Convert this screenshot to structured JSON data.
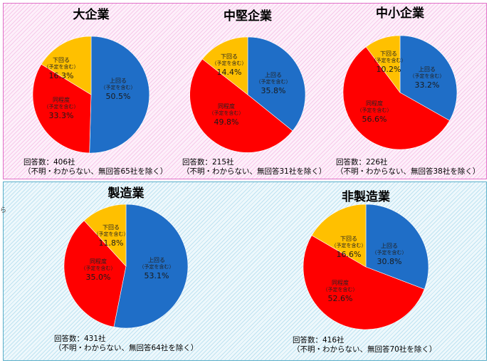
{
  "stray_mark": "ら",
  "chart_data": [
    {
      "type": "pie",
      "title": "大企業",
      "categories": [
        "上回る",
        "同程度",
        "下回る"
      ],
      "category_notes": [
        "（予定を含む）",
        "（予定を含む）",
        "（予定を含む）"
      ],
      "values": [
        50.5,
        33.3,
        16.3
      ],
      "value_labels": [
        "50.5%",
        "33.3%",
        "16.3%"
      ],
      "colors": [
        "#1f6ec7",
        "#ff0000",
        "#ffc000"
      ],
      "respondents": "回答数：406社",
      "note": "（不明・わからない、無回答65社を除く）"
    },
    {
      "type": "pie",
      "title": "中堅企業",
      "categories": [
        "上回る",
        "同程度",
        "下回る"
      ],
      "category_notes": [
        "（予定を含む）",
        "（予定を含む）",
        "（予定を含む）"
      ],
      "values": [
        35.8,
        49.8,
        14.4
      ],
      "value_labels": [
        "35.8%",
        "49.8%",
        "14.4%"
      ],
      "colors": [
        "#1f6ec7",
        "#ff0000",
        "#ffc000"
      ],
      "respondents": "回答数：215社",
      "note": "（不明・わからない、無回答31社を除く）"
    },
    {
      "type": "pie",
      "title": "中小企業",
      "categories": [
        "上回る",
        "同程度",
        "下回る"
      ],
      "category_notes": [
        "（予定を含む）",
        "（予定を含む）",
        "（予定を含む）"
      ],
      "values": [
        33.2,
        56.6,
        10.2
      ],
      "value_labels": [
        "33.2%",
        "56.6%",
        "10.2%"
      ],
      "colors": [
        "#1f6ec7",
        "#ff0000",
        "#ffc000"
      ],
      "respondents": "回答数：226社",
      "note": "（不明・わからない、無回答38社を除く）"
    },
    {
      "type": "pie",
      "title": "製造業",
      "categories": [
        "上回る",
        "同程度",
        "下回る"
      ],
      "category_notes": [
        "（予定を含む）",
        "（予定を含む）",
        "（予定を含む）"
      ],
      "values": [
        53.1,
        35.0,
        11.8
      ],
      "value_labels": [
        "53.1%",
        "35.0%",
        "11.8%"
      ],
      "colors": [
        "#1f6ec7",
        "#ff0000",
        "#ffc000"
      ],
      "respondents": "回答数：431社",
      "note": "（不明・わからない、無回答64社を除く）"
    },
    {
      "type": "pie",
      "title": "非製造業",
      "categories": [
        "上回る",
        "同程度",
        "下回る"
      ],
      "category_notes": [
        "（予定を含む）",
        "（予定を含む）",
        "（予定を含む）"
      ],
      "values": [
        30.8,
        52.6,
        16.6
      ],
      "value_labels": [
        "30.8%",
        "52.6%",
        "16.6%"
      ],
      "colors": [
        "#1f6ec7",
        "#ff0000",
        "#ffc000"
      ],
      "respondents": "回答数：416社",
      "note": "（不明・わからない、無回答70社を除く）"
    }
  ]
}
